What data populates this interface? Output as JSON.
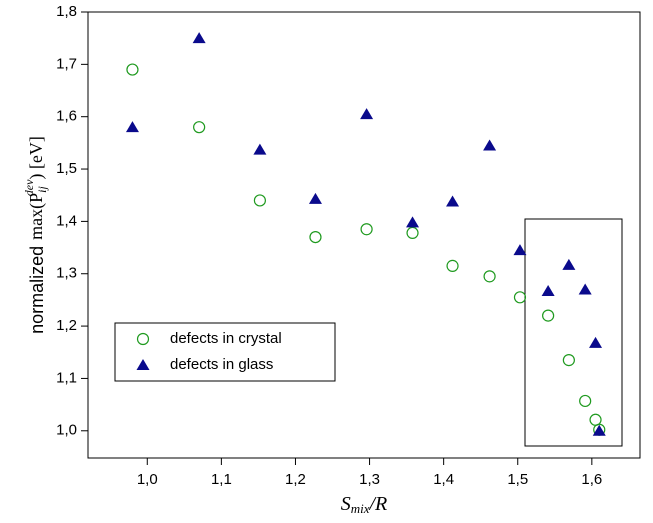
{
  "chart_data": {
    "type": "scatter",
    "xlabel": {
      "main": "S",
      "sub": "mix",
      "rest": "/R"
    },
    "ylabel": {
      "word": "normalized",
      "main": "max(P",
      "sub": "ij",
      "sup": "dev",
      "rest": ") [eV]"
    },
    "xlim": [
      0.92,
      1.665
    ],
    "ylim": [
      0.948,
      1.8
    ],
    "xticks": [
      {
        "value": 1.0,
        "label": "1,0"
      },
      {
        "value": 1.1,
        "label": "1,1"
      },
      {
        "value": 1.2,
        "label": "1,2"
      },
      {
        "value": 1.3,
        "label": "1,3"
      },
      {
        "value": 1.4,
        "label": "1,4"
      },
      {
        "value": 1.5,
        "label": "1,5"
      },
      {
        "value": 1.6,
        "label": "1,6"
      }
    ],
    "yticks": [
      {
        "value": 1.0,
        "label": "1,0"
      },
      {
        "value": 1.1,
        "label": "1,1"
      },
      {
        "value": 1.2,
        "label": "1,2"
      },
      {
        "value": 1.3,
        "label": "1,3"
      },
      {
        "value": 1.4,
        "label": "1,4"
      },
      {
        "value": 1.5,
        "label": "1,5"
      },
      {
        "value": 1.6,
        "label": "1,6"
      },
      {
        "value": 1.7,
        "label": "1,7"
      },
      {
        "value": 1.8,
        "label": "1,8"
      }
    ],
    "legend": "lower left",
    "series": [
      {
        "name": "defects in crystal",
        "color": "#1f9a1f",
        "marker": "circle",
        "x": [
          0.98,
          1.07,
          1.152,
          1.227,
          1.296,
          1.358,
          1.412,
          1.462,
          1.503,
          1.541,
          1.569,
          1.591,
          1.605,
          1.61
        ],
        "values": [
          1.69,
          1.58,
          1.44,
          1.37,
          1.385,
          1.378,
          1.315,
          1.295,
          1.255,
          1.22,
          1.135,
          1.057,
          1.021,
          1.002
        ]
      },
      {
        "name": "defects in glass",
        "color": "#0a0a8c",
        "marker": "triangle",
        "x": [
          0.98,
          1.07,
          1.152,
          1.227,
          1.296,
          1.358,
          1.412,
          1.462,
          1.503,
          1.541,
          1.569,
          1.591,
          1.605,
          1.61
        ],
        "values": [
          1.58,
          1.75,
          1.537,
          1.443,
          1.605,
          1.398,
          1.438,
          1.545,
          1.345,
          1.267,
          1.317,
          1.27,
          1.168,
          1.0
        ]
      }
    ]
  }
}
